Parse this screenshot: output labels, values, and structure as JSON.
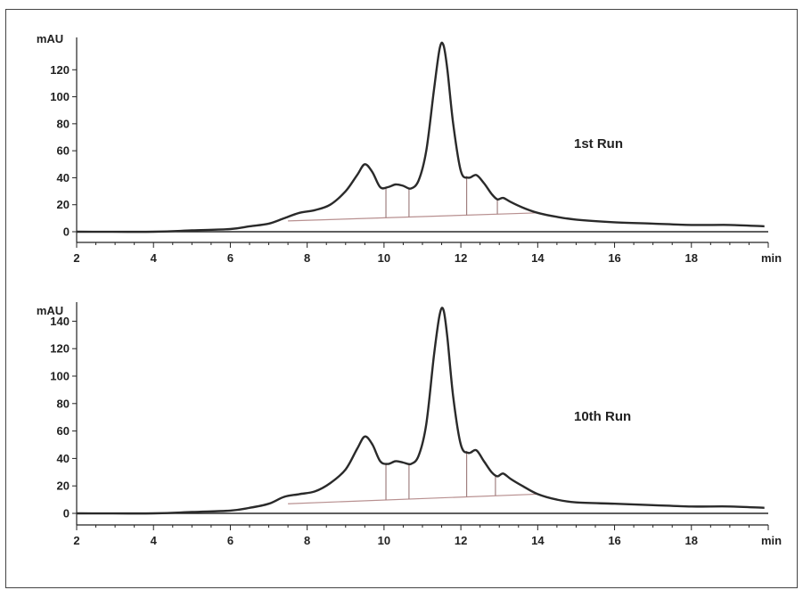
{
  "chart_data": [
    {
      "type": "line",
      "annotation": "1st Run",
      "ylabel": "mAU",
      "xlabel": "min",
      "xlim": [
        2,
        20
      ],
      "ylim": [
        0,
        140
      ],
      "x_ticks": [
        2,
        4,
        6,
        8,
        10,
        12,
        14,
        16,
        18
      ],
      "y_ticks": [
        0,
        20,
        40,
        60,
        80,
        100,
        120
      ],
      "series": [
        {
          "x": [
            2,
            4,
            5,
            6,
            6.5,
            7,
            7.4,
            7.8,
            8.2,
            8.6,
            9.0,
            9.3,
            9.5,
            9.7,
            9.9,
            10.1,
            10.3,
            10.5,
            10.7,
            10.9,
            11.1,
            11.3,
            11.45,
            11.55,
            11.65,
            11.8,
            12.0,
            12.2,
            12.4,
            12.6,
            12.8,
            12.95,
            13.1,
            13.3,
            13.6,
            14.0,
            14.5,
            15.0,
            16.0,
            17.0,
            18.0,
            19.0,
            19.9
          ],
          "y": [
            0,
            0,
            1,
            2,
            4,
            6,
            10,
            14,
            16,
            20,
            30,
            42,
            50,
            44,
            33,
            33,
            35,
            34,
            32,
            38,
            60,
            105,
            136,
            138,
            120,
            80,
            45,
            40,
            42,
            36,
            28,
            24,
            25,
            22,
            18,
            14,
            11,
            9,
            7,
            6,
            5,
            5,
            4
          ]
        }
      ],
      "baseline": {
        "x": [
          7.5,
          14.0
        ],
        "y": [
          8,
          14
        ]
      },
      "dividers": [
        10.05,
        10.65,
        12.15,
        12.95
      ]
    },
    {
      "type": "line",
      "annotation": "10th Run",
      "ylabel": "mAU",
      "xlabel": "min",
      "xlim": [
        2,
        20
      ],
      "ylim": [
        0,
        150
      ],
      "x_ticks": [
        2,
        4,
        6,
        8,
        10,
        12,
        14,
        16,
        18
      ],
      "y_ticks": [
        0,
        20,
        40,
        60,
        80,
        100,
        120,
        140
      ],
      "series": [
        {
          "x": [
            2,
            4,
            5,
            6,
            6.5,
            7,
            7.4,
            7.8,
            8.2,
            8.6,
            9.0,
            9.3,
            9.5,
            9.7,
            9.9,
            10.1,
            10.3,
            10.5,
            10.7,
            10.9,
            11.1,
            11.3,
            11.45,
            11.55,
            11.65,
            11.8,
            12.0,
            12.2,
            12.4,
            12.6,
            12.8,
            12.95,
            13.1,
            13.3,
            13.6,
            14.0,
            14.5,
            15.0,
            16.0,
            17.0,
            18.0,
            19.0,
            19.9
          ],
          "y": [
            0,
            0,
            1,
            2,
            4,
            7,
            12,
            14,
            16,
            22,
            32,
            47,
            56,
            50,
            38,
            36,
            38,
            37,
            36,
            42,
            65,
            115,
            145,
            148,
            128,
            85,
            50,
            44,
            46,
            38,
            30,
            27,
            29,
            25,
            20,
            14,
            10,
            8,
            7,
            6,
            5,
            5,
            4
          ]
        }
      ],
      "baseline": {
        "x": [
          7.5,
          14.0
        ],
        "y": [
          7,
          14
        ]
      },
      "dividers": [
        10.05,
        10.65,
        12.15,
        12.9
      ]
    }
  ],
  "colors": {
    "trace": "#2a2a2a",
    "baseline": "#b89090",
    "divider": "#a08080",
    "axis": "#222222"
  }
}
